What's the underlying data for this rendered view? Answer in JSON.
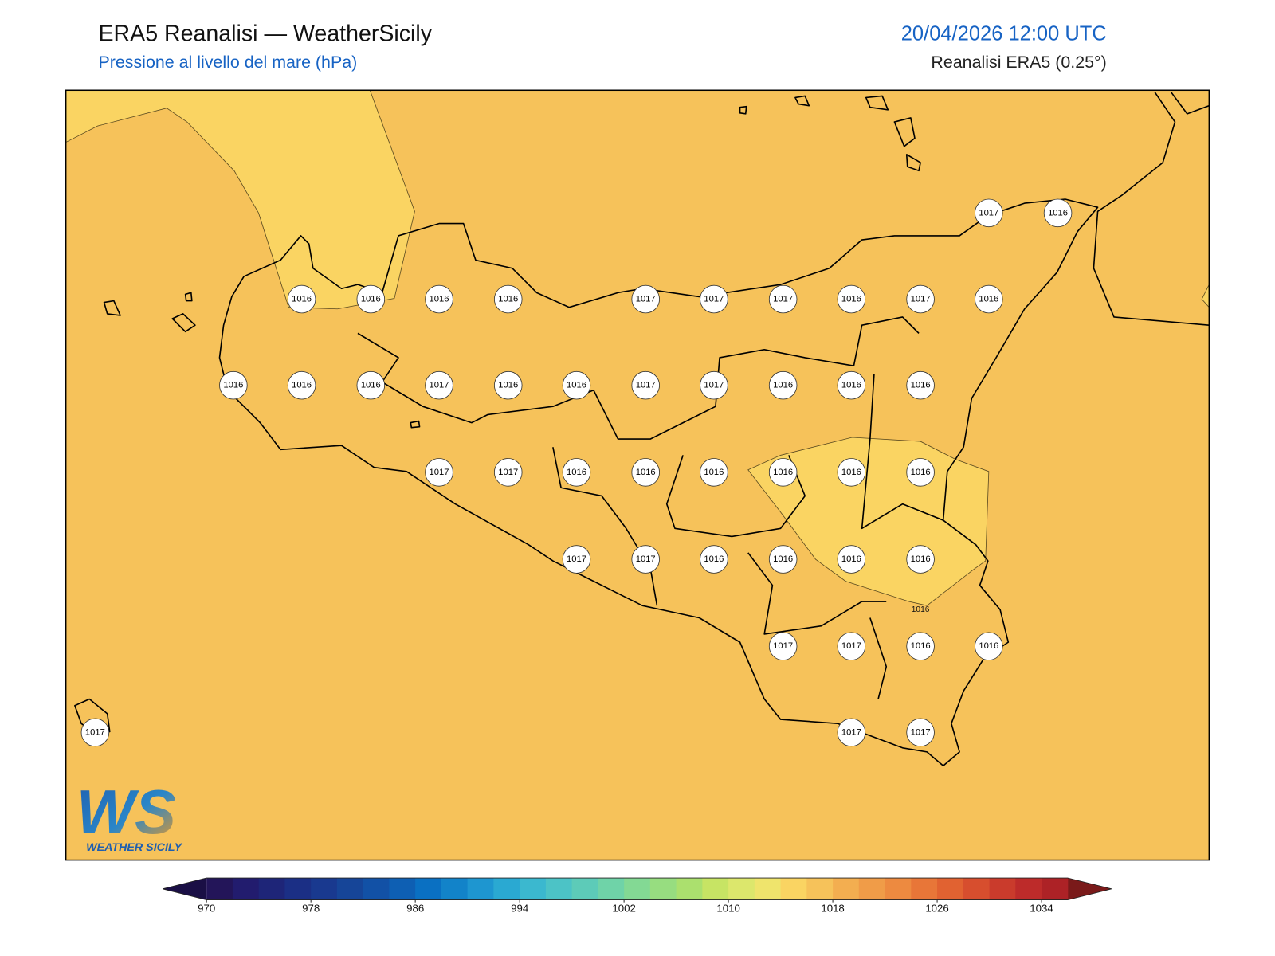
{
  "header": {
    "title": "ERA5 Reanalisi — WeatherSicily",
    "subtitle": "Pressione al livello del mare (hPa)",
    "datetime": "20/04/2026 12:00 UTC",
    "source": "Reanalisi ERA5 (0.25°)"
  },
  "map": {
    "station_values": [
      1017,
      1016,
      1016,
      1016,
      1016,
      1016,
      1017,
      1017,
      1017,
      1016,
      1017,
      1016,
      1016,
      1016,
      1016,
      1017,
      1016,
      1016,
      1017,
      1017,
      1016,
      1016,
      1016,
      1017,
      1017,
      1016,
      1016,
      1016,
      1016,
      1016,
      1016,
      1017,
      1017,
      1016,
      1016,
      1016,
      1016,
      1017,
      1017,
      1016,
      1016,
      1017,
      1017,
      1017
    ],
    "contour_label": "1016"
  },
  "logo": {
    "mark": "WS",
    "text": "WEATHER SICILY"
  },
  "colorbar": {
    "range": [
      970,
      1036
    ],
    "ticks": [
      970,
      978,
      986,
      994,
      1002,
      1010,
      1018,
      1026,
      1034
    ],
    "colors": [
      "#231559",
      "#221c6e",
      "#1e2578",
      "#1b2f85",
      "#19398f",
      "#164598",
      "#1251a6",
      "#0e5fb3",
      "#0a70c2",
      "#1283c9",
      "#1e96d0",
      "#2aa9d2",
      "#3bb8cf",
      "#4cc3c6",
      "#5dcbb8",
      "#6fd3a8",
      "#83d994",
      "#97dd80",
      "#abe06e",
      "#c7e464",
      "#dce76c",
      "#efe46c",
      "#fad462",
      "#f6c25a",
      "#f3ae50",
      "#f09c48",
      "#ed8a40",
      "#e87638",
      "#e16231",
      "#d74e2e",
      "#ca3b2c",
      "#bd2b2a",
      "#ad2226"
    ],
    "under_color": "#1a0f45",
    "over_color": "#7a1a1a"
  }
}
